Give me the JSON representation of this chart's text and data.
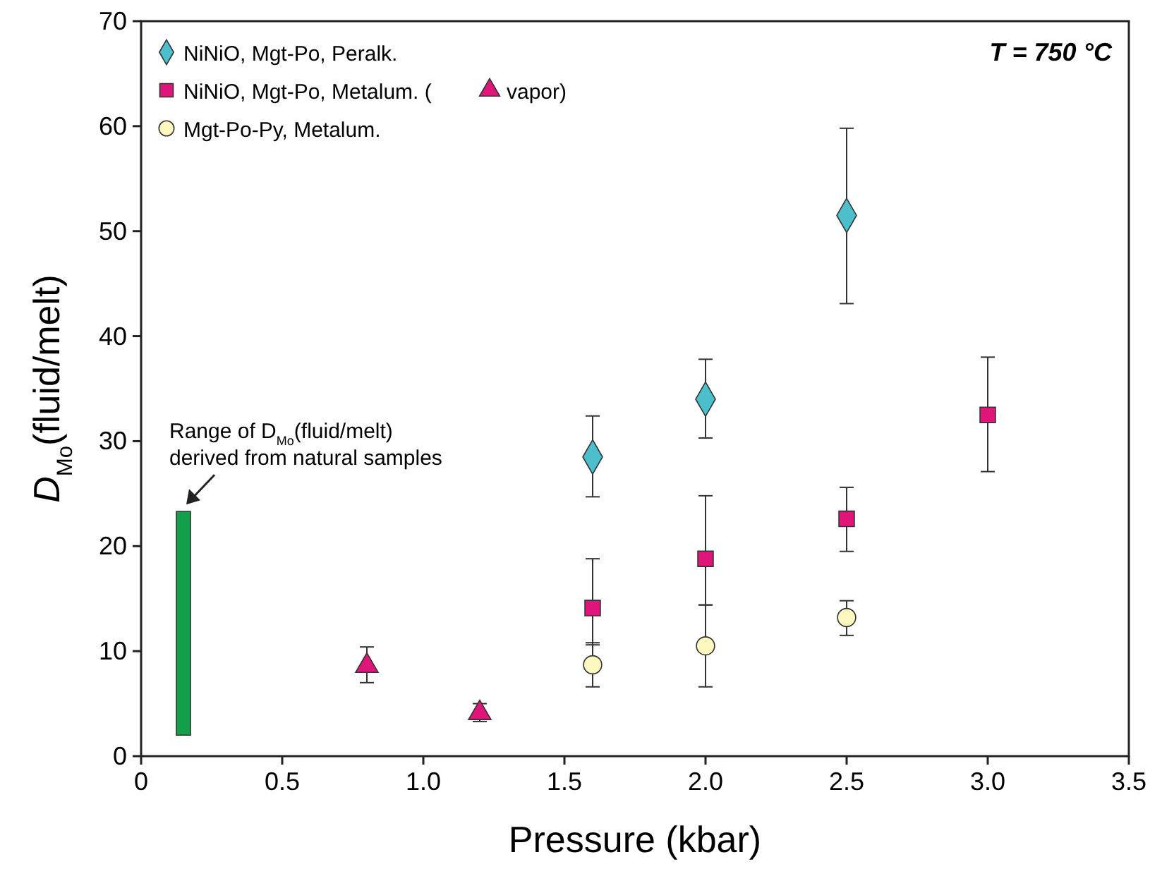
{
  "chart_data": {
    "type": "scatter",
    "xlabel": "Pressure (kbar)",
    "ylabel": "D$_{Mo}$(fluid/melt)",
    "xlim": [
      0,
      3.5
    ],
    "xticks": [
      0,
      0.5,
      {
        "value": 1,
        "label": "1.0"
      },
      1.5,
      {
        "value": 2,
        "label": "2.0"
      },
      2.5,
      {
        "value": 3,
        "label": "3.0"
      },
      3.5
    ],
    "ylim": [
      0,
      70
    ],
    "yticks": [
      0,
      10,
      20,
      30,
      40,
      50,
      60,
      70
    ],
    "grid": false,
    "legend": "top left",
    "series": [
      {
        "name": "NiNiO, Mgt-Po, Peralk.",
        "color": "#4bbfcc",
        "marker": "diamond",
        "x": [
          1.6,
          2.0,
          2.5
        ],
        "values": [
          28.5,
          34,
          51.5
        ],
        "errors": [
          [
            24.7,
            32.4
          ],
          [
            30.3,
            37.8
          ],
          [
            43.1,
            59.8
          ]
        ]
      },
      {
        "name": "NiNiO, Mgt-Po, Metalum. (",
        "color": "#e0157a",
        "marker": "square",
        "x": [
          1.6,
          2.0,
          2.5,
          3.0
        ],
        "values": [
          14.1,
          18.8,
          22.6,
          32.5
        ],
        "errors": [
          [
            10.6,
            18.8
          ],
          [
            14.4,
            24.8
          ],
          [
            19.5,
            25.6
          ],
          [
            27.1,
            38
          ]
        ]
      },
      {
        "name": "vapor)",
        "color": "#e0157a",
        "marker": "triangle",
        "x": [
          0.8,
          1.2
        ],
        "values": [
          8.6,
          4.1
        ],
        "errors": [
          [
            7.0,
            10.4
          ],
          [
            3.3,
            5.0
          ]
        ]
      },
      {
        "name": "Mgt-Po-Py, Metalum.",
        "color": "#fdf7c0",
        "marker": "circle",
        "x": [
          1.6,
          2.0,
          2.5
        ],
        "values": [
          8.7,
          10.5,
          13.2
        ],
        "errors": [
          [
            6.6,
            10.8
          ],
          [
            6.6,
            14.4
          ],
          [
            11.5,
            14.8
          ]
        ]
      },
      {
        "type": "bar",
        "color": "#12a14a",
        "x": [
          0.15
        ],
        "base": [
          2
        ],
        "values": [
          21.3
        ]
      }
    ],
    "annotations": [
      {
        "text": "Range of D$_{Mo}$(fluid/melt) derived from natural samples",
        "x": 0.15,
        "y": 23.3
      },
      "T = 750 °C"
    ]
  }
}
